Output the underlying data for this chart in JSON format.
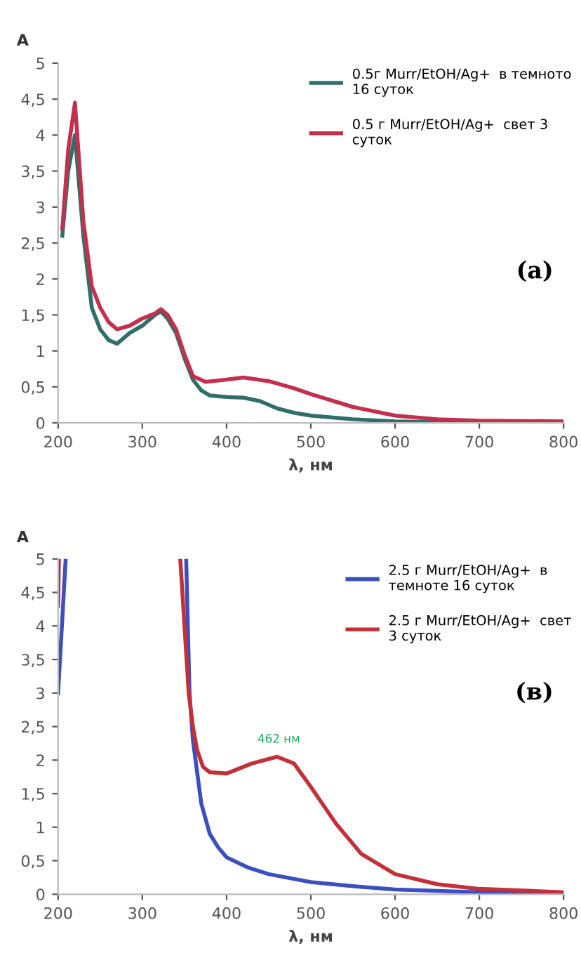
{
  "chart_data": [
    {
      "type": "line",
      "xlabel": "λ, нм",
      "ylabel": "A",
      "xlim": [
        200,
        800
      ],
      "ylim": [
        0,
        5
      ],
      "xticks": [
        200,
        300,
        400,
        500,
        600,
        700,
        800
      ],
      "yticks": [
        0,
        {
          "value": 0.5,
          "label": "0,5"
        },
        1,
        {
          "value": 1.5,
          "label": "1,5"
        },
        2,
        {
          "value": 2.5,
          "label": "2,5"
        },
        3,
        {
          "value": 3.5,
          "label": "3,5"
        },
        4,
        {
          "value": 4.5,
          "label": "4,5"
        },
        5
      ],
      "legend": "top right",
      "grid": false,
      "annotations": [
        "(a)"
      ],
      "series": [
        {
          "name": "0.5г Murr/EtOH/Ag+  в темното\n16 суток",
          "color": "#2f6f68",
          "x": [
            205,
            212,
            220,
            230,
            240,
            250,
            260,
            270,
            285,
            300,
            315,
            322,
            330,
            340,
            350,
            360,
            370,
            380,
            400,
            420,
            440,
            460,
            480,
            500,
            550,
            600,
            650,
            700,
            800
          ],
          "values": [
            2.6,
            3.5,
            4.0,
            2.6,
            1.6,
            1.3,
            1.15,
            1.1,
            1.25,
            1.35,
            1.5,
            1.55,
            1.45,
            1.25,
            0.9,
            0.6,
            0.45,
            0.38,
            0.36,
            0.35,
            0.3,
            0.2,
            0.14,
            0.1,
            0.05,
            0.02,
            0.01,
            0.01,
            0.0
          ]
        },
        {
          "name": "0.5 г Murr/EtOH/Ag+  свет 3\nсуток",
          "color": "#c2304e",
          "x": [
            205,
            212,
            220,
            230,
            240,
            250,
            260,
            270,
            285,
            300,
            315,
            322,
            330,
            340,
            350,
            360,
            375,
            400,
            420,
            450,
            480,
            500,
            550,
            600,
            650,
            700,
            800
          ],
          "values": [
            2.7,
            3.8,
            4.45,
            2.8,
            1.9,
            1.6,
            1.4,
            1.3,
            1.35,
            1.45,
            1.52,
            1.58,
            1.5,
            1.3,
            0.95,
            0.65,
            0.57,
            0.6,
            0.63,
            0.58,
            0.48,
            0.4,
            0.22,
            0.1,
            0.05,
            0.03,
            0.02
          ]
        }
      ]
    },
    {
      "type": "line",
      "xlabel": "λ, нм",
      "ylabel": "A",
      "xlim": [
        200,
        800
      ],
      "ylim": [
        0,
        5
      ],
      "xticks": [
        200,
        300,
        400,
        500,
        600,
        700,
        800
      ],
      "yticks": [
        0,
        {
          "value": 0.5,
          "label": "0,5"
        },
        1,
        {
          "value": 1.5,
          "label": "1,5"
        },
        2,
        {
          "value": 2.5,
          "label": "2,5"
        },
        3,
        {
          "value": 3.5,
          "label": "3,5"
        },
        4,
        {
          "value": 4.5,
          "label": "4,5"
        },
        5
      ],
      "legend": "top right",
      "grid": false,
      "annotations": [
        "(в)",
        {
          "text": "462 нм",
          "x": 462,
          "y": 2.05
        }
      ],
      "series": [
        {
          "name": "2.5 г Murr/EtOH/Ag+  в\nтемноте 16 суток",
          "color": "#3b4fc0",
          "x": [
            200,
            209,
            300,
            352,
            356,
            360,
            370,
            380,
            390,
            400,
            425,
            450,
            500,
            550,
            600,
            700,
            800
          ],
          "values": [
            3.0,
            5.0,
            null,
            5.0,
            3.0,
            2.3,
            1.35,
            0.9,
            0.7,
            0.55,
            0.4,
            0.3,
            0.18,
            0.12,
            0.07,
            0.03,
            0.02
          ]
        },
        {
          "name": "2.5 г Murr/EtOH/Ag+  свет\n3 суток",
          "color": "#c23038",
          "x": [
            200,
            201,
            300,
            345,
            350,
            355,
            360,
            365,
            372,
            380,
            400,
            430,
            460,
            480,
            500,
            530,
            560,
            600,
            650,
            700,
            800
          ],
          "values": [
            4.3,
            5.0,
            null,
            5.0,
            4.0,
            3.0,
            2.5,
            2.15,
            1.9,
            1.82,
            1.8,
            1.95,
            2.05,
            1.95,
            1.6,
            1.05,
            0.6,
            0.3,
            0.15,
            0.08,
            0.03
          ]
        }
      ]
    }
  ]
}
